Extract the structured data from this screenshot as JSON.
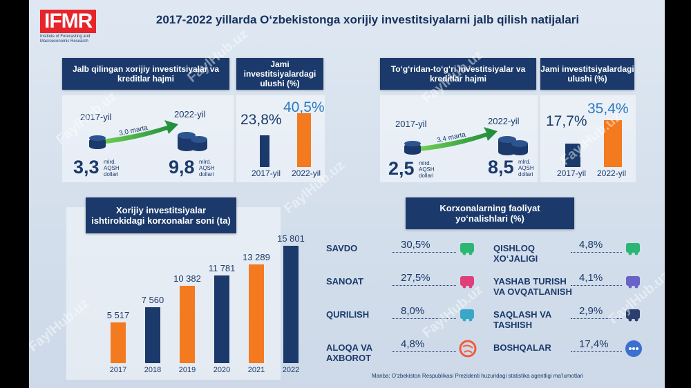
{
  "logo": {
    "text": "IFMR",
    "subtitle": "Institute of Forecasting and Macroeconomic Research"
  },
  "title": "2017-2022 yillarda O‘zbekistonga xorijiy investitsiyalarni jalb qilish natijalari",
  "left_panel": {
    "header": "Jalb qilingan xorijiy investitsiyalar va kreditlar hajmi",
    "year_start": "2017-yil",
    "year_end": "2022-yil",
    "growth": "3,0 marta",
    "value_start": "3,3",
    "value_end": "9,8",
    "unit": "mlrd. AQSH dollari",
    "share_header": "Jami investitsiyalardagi ulushi (%)",
    "share": [
      {
        "label": "2017-yil",
        "value_text": "23,8%",
        "value": 23.8
      },
      {
        "label": "2022-yil",
        "value_text": "40,5%",
        "value": 40.5
      }
    ]
  },
  "right_panel": {
    "header": "To‘g‘ridan-to‘g‘ri investitsiyalar va kreditlar hajmi",
    "year_start": "2017-yil",
    "year_end": "2022-yil",
    "growth": "3,4 marta",
    "value_start": "2,5",
    "value_end": "8,5",
    "unit": "mlrd. AQSH dollari",
    "share_header": "Jami investitsiyalardagi ulushi (%)",
    "share": [
      {
        "label": "2017-yil",
        "value_text": "17,7%",
        "value": 17.7
      },
      {
        "label": "2022-yil",
        "value_text": "35,4%",
        "value": 35.4
      }
    ]
  },
  "chart_data": {
    "type": "bar",
    "title": "Xorijiy investitsiyalar ishtirokidagi korxonalar soni (ta)",
    "categories": [
      "2017",
      "2018",
      "2019",
      "2020",
      "2021",
      "2022"
    ],
    "values": [
      5517,
      7560,
      10382,
      11781,
      13289,
      15801
    ],
    "labels": [
      "5 517",
      "7 560",
      "10 382",
      "11 781",
      "13 289",
      "15 801"
    ],
    "colors": [
      "#f47a20",
      "#1b3a6b",
      "#f47a20",
      "#1b3a6b",
      "#f47a20",
      "#1b3a6b"
    ],
    "ylim": [
      0,
      15801
    ]
  },
  "sectors": {
    "header": "Korxonalarning faoliyat yo‘nalishlari (%)",
    "left": [
      {
        "name": "SAVDO",
        "pct": "30,5%",
        "icon": "cart-icon",
        "color": "#2bb673"
      },
      {
        "name": "SANOAT",
        "pct": "27,5%",
        "icon": "factory-icon",
        "color": "#e0407a"
      },
      {
        "name": "QURILISH",
        "pct": "8,0%",
        "icon": "crane-icon",
        "color": "#3aa7c7"
      },
      {
        "name": "ALOQA VA AXBOROT",
        "pct": "4,8%",
        "icon": "globe-icon",
        "color": "#f25a3a"
      }
    ],
    "right": [
      {
        "name": "QISHLOQ XO‘JALIGI",
        "pct": "4,8%",
        "icon": "tractor-icon",
        "color": "#2bb673"
      },
      {
        "name": "YASHAB TURISH VA OVQATLANISH",
        "pct": "4,1%",
        "icon": "hotel-icon",
        "color": "#6a63c7"
      },
      {
        "name": "SAQLASH VA TASHISH",
        "pct": "2,9%",
        "icon": "forklift-icon",
        "color": "#2c3e6b"
      },
      {
        "name": "BOSHQALAR",
        "pct": "17,4%",
        "icon": "dots-icon",
        "color": "#3b6fd0"
      }
    ]
  },
  "source": "Manba: O‘zbekiston Respublikasi Prezidenti huzuridagi statistika agentligi ma’lumotlari",
  "watermark": "FaylHub.uz"
}
